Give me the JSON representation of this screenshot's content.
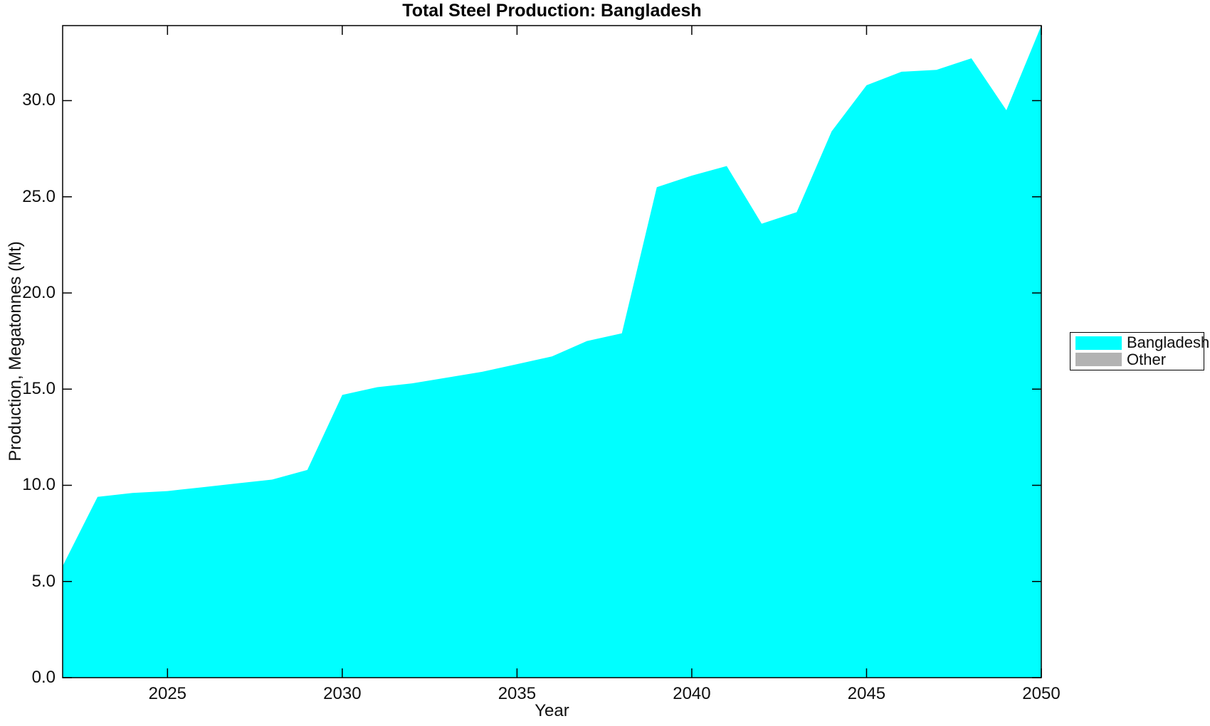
{
  "chart_data": {
    "type": "area",
    "title": "Total Steel Production: Bangladesh",
    "xlabel": "Year",
    "ylabel": "Production, Megatonnes (Mt)",
    "x": [
      2022,
      2023,
      2024,
      2025,
      2026,
      2027,
      2028,
      2029,
      2030,
      2031,
      2032,
      2033,
      2034,
      2035,
      2036,
      2037,
      2038,
      2039,
      2040,
      2041,
      2042,
      2043,
      2044,
      2045,
      2046,
      2047,
      2048,
      2049,
      2050
    ],
    "series": [
      {
        "name": "Bangladesh",
        "color": "#00FFFF",
        "values": [
          5.8,
          9.4,
          9.6,
          9.7,
          9.9,
          10.1,
          10.3,
          10.8,
          14.7,
          15.1,
          15.3,
          15.6,
          15.9,
          16.3,
          16.7,
          17.5,
          17.9,
          25.5,
          26.1,
          26.6,
          23.6,
          24.2,
          28.4,
          30.8,
          31.5,
          31.6,
          32.2,
          29.5,
          33.9
        ]
      },
      {
        "name": "Other",
        "color": "#B3B3B3",
        "values": [
          0,
          0,
          0,
          0,
          0,
          0,
          0,
          0,
          0,
          0,
          0,
          0,
          0,
          0,
          0,
          0,
          0,
          0,
          0,
          0,
          0,
          0,
          0,
          0,
          0,
          0,
          0,
          0,
          0
        ]
      }
    ],
    "xlim": [
      2022,
      2050
    ],
    "ylim": [
      0,
      33.9
    ],
    "xticks": {
      "values": [
        2025,
        2030,
        2035,
        2040,
        2045,
        2050
      ],
      "labels": [
        "2025",
        "2030",
        "2035",
        "2040",
        "2045",
        "2050"
      ]
    },
    "yticks": {
      "values": [
        0,
        5,
        10,
        15,
        20,
        25,
        30
      ],
      "labels": [
        "0.0",
        "5.0",
        "10.0",
        "15.0",
        "20.0",
        "25.0",
        "30.0"
      ]
    },
    "grid": false,
    "legend_position": "right-outside"
  },
  "legend": {
    "entries": [
      {
        "label": "Bangladesh",
        "color": "#00FFFF"
      },
      {
        "label": "Other",
        "color": "#B3B3B3"
      }
    ]
  },
  "colors": {
    "axis": "#000000",
    "background": "#FFFFFF",
    "accent": "#00FFFF"
  }
}
